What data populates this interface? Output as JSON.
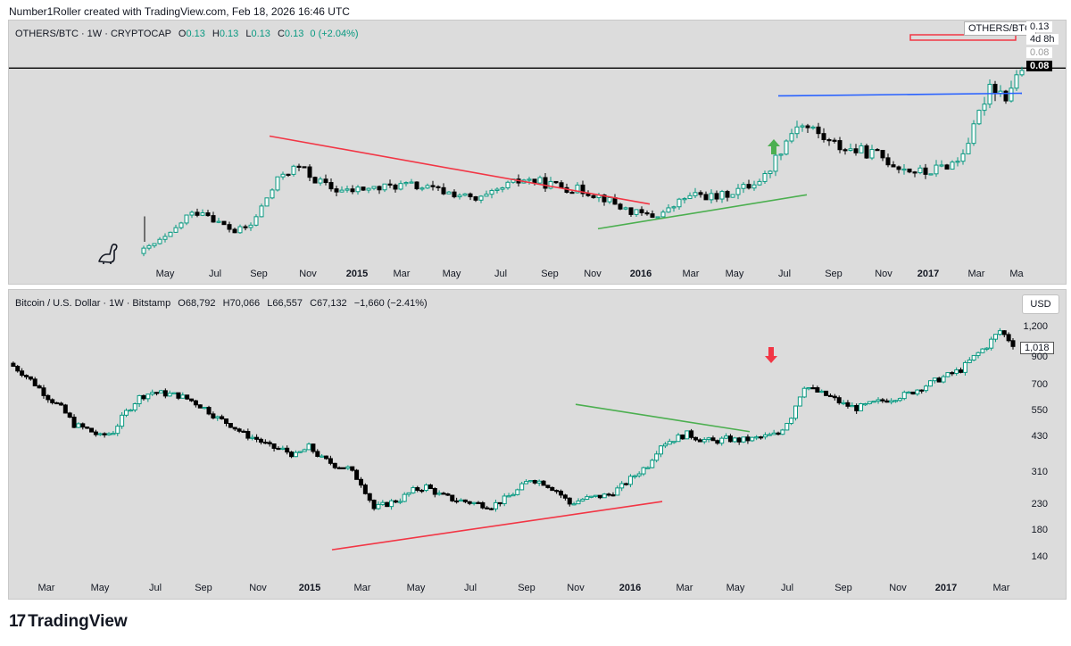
{
  "header": {
    "credit": "Number1Roller created with TradingView.com, Feb 18, 2026 16:46 UTC"
  },
  "brand": {
    "logo_mark": "17",
    "name": "TradingView"
  },
  "colors": {
    "up": "#089981",
    "up_fill": "#ffffff",
    "down": "#000000",
    "red": "#f23645",
    "green": "#4caf50",
    "blue": "#2962ff",
    "pane_bg": "#dcdcdc"
  },
  "top": {
    "symbol": "OTHERS/BTC · 1W · CRYPTOCAP",
    "o_label": "O",
    "o": "0.13",
    "h_label": "H",
    "h": "0.13",
    "l_label": "L",
    "l": "0.13",
    "c_label": "C",
    "c": "0.13",
    "change": "0 (+2.04%)",
    "symbol_box": "OTHERS/BTC",
    "price_current": "0.13",
    "countdown": "4d 8h",
    "price_a": "0.08",
    "price_b": "0.08",
    "x_labels": [
      "May",
      "Jul",
      "Sep",
      "Nov",
      "2015",
      "Mar",
      "May",
      "Jul",
      "Sep",
      "Nov",
      "2016",
      "Mar",
      "May",
      "Jul",
      "Sep",
      "Nov",
      "2017",
      "Mar",
      "Ma"
    ],
    "x_bold": [
      false,
      false,
      false,
      false,
      true,
      false,
      false,
      false,
      false,
      false,
      true,
      false,
      false,
      false,
      false,
      false,
      true,
      false,
      false
    ]
  },
  "bottom": {
    "symbol": "Bitcoin / U.S. Dollar · 1W · Bitstamp",
    "o_label": "O",
    "o": "68,792",
    "h_label": "H",
    "h": "70,066",
    "l_label": "L",
    "l": "66,557",
    "c_label": "C",
    "c": "67,132",
    "change": "−1,660 (−2.41%)",
    "currency": "USD",
    "last_price": "1,018",
    "x_labels": [
      "Mar",
      "May",
      "Jul",
      "Sep",
      "Nov",
      "2015",
      "Mar",
      "May",
      "Jul",
      "Sep",
      "Nov",
      "2016",
      "Mar",
      "May",
      "Jul",
      "Sep",
      "Nov",
      "2017",
      "Mar"
    ],
    "x_bold": [
      false,
      false,
      false,
      false,
      false,
      true,
      false,
      false,
      false,
      false,
      false,
      true,
      false,
      false,
      false,
      false,
      false,
      true,
      false
    ],
    "y_labels": [
      "1,200",
      "900",
      "700",
      "550",
      "430",
      "310",
      "230",
      "180",
      "140"
    ]
  },
  "chart_data": [
    {
      "type": "candlestick",
      "title": "OTHERS/BTC · 1W · CRYPTOCAP",
      "timeframe": "weekly",
      "x_start": "2014-03",
      "x_end": "2017-03",
      "price_path": [
        0.03,
        0.033,
        0.036,
        0.042,
        0.044,
        0.04,
        0.037,
        0.039,
        0.048,
        0.056,
        0.058,
        0.054,
        0.051,
        0.05,
        0.051,
        0.051,
        0.052,
        0.052,
        0.051,
        0.05,
        0.049,
        0.047,
        0.049,
        0.052,
        0.054,
        0.053,
        0.052,
        0.051,
        0.05,
        0.048,
        0.045,
        0.043,
        0.042,
        0.044,
        0.048,
        0.049,
        0.048,
        0.05,
        0.052,
        0.055,
        0.064,
        0.072,
        0.07,
        0.066,
        0.064,
        0.063,
        0.062,
        0.059,
        0.057,
        0.056,
        0.058,
        0.06,
        0.07,
        0.085,
        0.081,
        0.09
      ],
      "annotations": [
        {
          "type": "trendline",
          "color": "red",
          "from": [
            "2014-09",
            0.068
          ],
          "to": [
            "2016-01",
            0.046
          ],
          "label": ""
        },
        {
          "type": "trendline",
          "color": "green",
          "from": [
            "2015-11",
            0.038
          ],
          "to": [
            "2016-07",
            0.049
          ],
          "label": ""
        },
        {
          "type": "horizontal",
          "color": "blue",
          "from": "2016-07",
          "to": "2017-04",
          "value": 0.081
        },
        {
          "type": "horizontal",
          "color": "black",
          "value": 0.09
        },
        {
          "type": "arrow",
          "color": "green",
          "direction": "up",
          "at": "2016-06"
        }
      ]
    },
    {
      "type": "candlestick",
      "title": "Bitcoin / U.S. Dollar · 1W · Bitstamp",
      "scale": "log",
      "ylim": [
        120,
        1400
      ],
      "y_ticks": [
        1200,
        900,
        700,
        550,
        430,
        310,
        230,
        180,
        140
      ],
      "price_path": [
        850,
        780,
        700,
        620,
        560,
        480,
        460,
        430,
        450,
        540,
        620,
        650,
        640,
        630,
        600,
        560,
        510,
        480,
        440,
        420,
        390,
        380,
        360,
        390,
        350,
        330,
        320,
        280,
        220,
        230,
        240,
        260,
        270,
        250,
        240,
        235,
        230,
        225,
        240,
        260,
        290,
        280,
        260,
        230,
        240,
        245,
        250,
        270,
        300,
        330,
        400,
        420,
        440,
        420,
        410,
        420,
        415,
        420,
        430,
        440,
        520,
        690,
        650,
        620,
        580,
        560,
        580,
        600,
        620,
        640,
        680,
        720,
        760,
        800,
        900,
        1000,
        1150,
        1018
      ],
      "last_price": 1018,
      "annotations": [
        {
          "type": "trendline",
          "color": "green",
          "from": [
            "2015-11",
            580
          ],
          "to": [
            "2016-06",
            450
          ]
        },
        {
          "type": "trendline",
          "color": "red",
          "from": [
            "2015-01",
            150
          ],
          "to": [
            "2016-02",
            235
          ]
        },
        {
          "type": "arrow",
          "color": "red",
          "direction": "down",
          "at": "2016-06"
        }
      ]
    }
  ]
}
